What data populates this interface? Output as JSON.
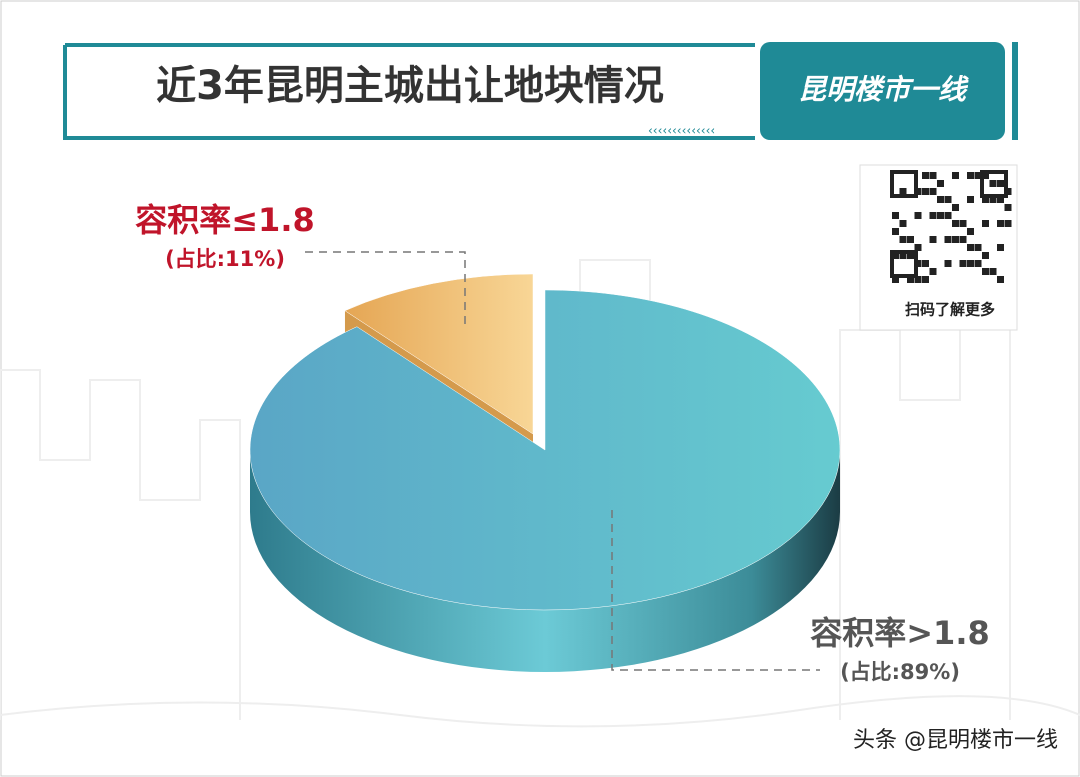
{
  "chart_data": {
    "type": "pie",
    "title": "近3年昆明主城出让地块情况",
    "categories": [
      "容积率≤1.8",
      "容积率>1.8"
    ],
    "values": [
      11,
      89
    ],
    "value_labels": [
      "(占比:11%)",
      "(占比:89%)"
    ],
    "colors": [
      "#f2c47c",
      "#5fbfcc"
    ]
  },
  "brand": "昆明楼市一线",
  "qr_caption": "扫码了解更多",
  "footer": "头条 @昆明楼市一线"
}
